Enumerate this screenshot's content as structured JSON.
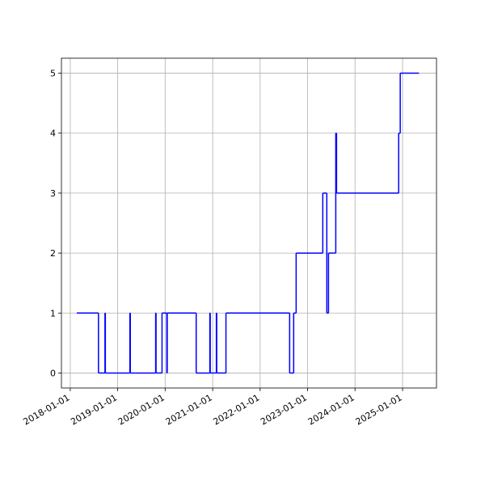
{
  "chart_data": {
    "type": "line",
    "drawstyle": "steps-post",
    "grid": true,
    "x": [
      "2018-02-20",
      "2018-08-06",
      "2018-09-25",
      "2018-09-28",
      "2019-04-05",
      "2019-04-08",
      "2019-10-20",
      "2019-10-23",
      "2019-12-08",
      "2020-01-14",
      "2020-01-17",
      "2020-08-27",
      "2020-12-10",
      "2020-12-13",
      "2021-01-29",
      "2021-02-01",
      "2021-04-13",
      "2022-08-16",
      "2022-09-16",
      "2022-10-05",
      "2023-04-28",
      "2023-05-29",
      "2023-06-11",
      "2023-08-06",
      "2023-08-12",
      "2024-12-02",
      "2024-12-14",
      "2025-05-07"
    ],
    "series": [
      {
        "color": "#0000ff",
        "values": [
          1,
          0,
          1,
          0,
          1,
          0,
          1,
          0,
          1,
          0,
          1,
          0,
          1,
          0,
          1,
          0,
          1,
          0,
          1,
          2,
          3,
          1,
          2,
          4,
          3,
          4,
          5,
          5
        ]
      }
    ],
    "xlim": [
      "2017-10-25",
      "2025-09-19"
    ],
    "xticks": [
      "2018-01-01",
      "2019-01-01",
      "2020-01-01",
      "2021-01-01",
      "2022-01-01",
      "2023-01-01",
      "2024-01-01",
      "2025-01-01"
    ],
    "ylim": [
      -0.25,
      5.25
    ],
    "yticks": [
      0,
      1,
      2,
      3,
      4,
      5
    ]
  }
}
